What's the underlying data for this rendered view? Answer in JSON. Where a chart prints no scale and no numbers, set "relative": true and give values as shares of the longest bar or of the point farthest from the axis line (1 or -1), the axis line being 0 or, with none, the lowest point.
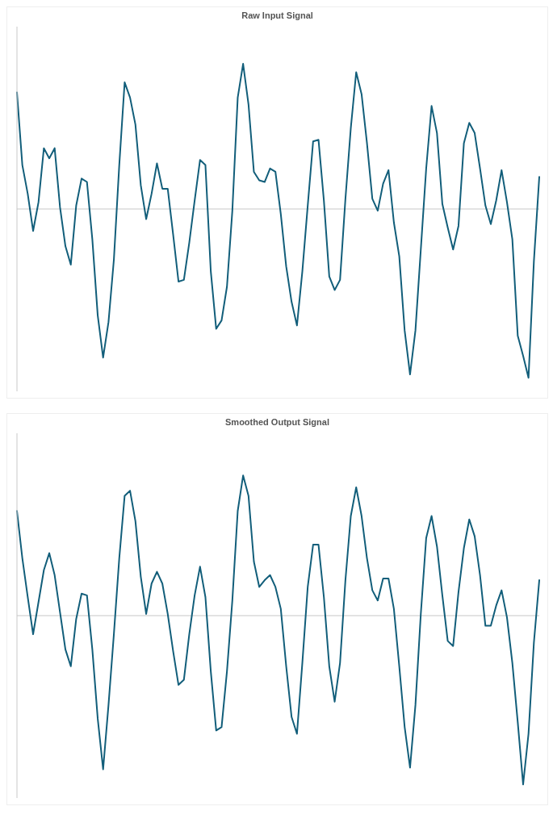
{
  "chart_data": [
    {
      "type": "line",
      "title": "Raw Input Signal",
      "relative": true,
      "categories": [
        null,
        null,
        null,
        null,
        null,
        null,
        null,
        null,
        null,
        null,
        null,
        null,
        null,
        null,
        null,
        null,
        null,
        null,
        null,
        null,
        null,
        null,
        null,
        null,
        null,
        null,
        null,
        null,
        null,
        null,
        null,
        null,
        null,
        null,
        null,
        null,
        null,
        null,
        null,
        null,
        null,
        null,
        null,
        null,
        null,
        null,
        null,
        null,
        null,
        null,
        null,
        null,
        null,
        null,
        null,
        null,
        null,
        null,
        null,
        null,
        null,
        null,
        null,
        null,
        null,
        null,
        null,
        null,
        null,
        null,
        null,
        null,
        null,
        null,
        null,
        null,
        null,
        null,
        null,
        null,
        null,
        null,
        null,
        null,
        null,
        null,
        null,
        null,
        null,
        null,
        null,
        null,
        null,
        null,
        null,
        null,
        null,
        null
      ],
      "series": [
        {
          "color": "#125e7a",
          "values": [
            0.69,
            0.26,
            0.09,
            -0.13,
            0.04,
            0.36,
            0.3,
            0.36,
            0.01,
            -0.22,
            -0.33,
            0.02,
            0.18,
            0.16,
            -0.18,
            -0.63,
            -0.88,
            -0.67,
            -0.3,
            0.26,
            0.75,
            0.66,
            0.5,
            0.14,
            -0.06,
            0.09,
            0.27,
            0.12,
            0.12,
            -0.15,
            -0.43,
            -0.42,
            -0.2,
            0.05,
            0.29,
            0.26,
            -0.37,
            -0.71,
            -0.66,
            -0.46,
            -0.01,
            0.66,
            0.86,
            0.62,
            0.22,
            0.17,
            0.16,
            0.24,
            0.22,
            -0.03,
            -0.34,
            -0.55,
            -0.69,
            -0.37,
            0.02,
            0.4,
            0.41,
            0.05,
            -0.4,
            -0.48,
            -0.42,
            0.06,
            0.48,
            0.81,
            0.68,
            0.39,
            0.06,
            -0.01,
            0.15,
            0.23,
            -0.08,
            -0.28,
            -0.72,
            -0.98,
            -0.72,
            -0.24,
            0.24,
            0.61,
            0.45,
            0.03,
            -0.11,
            -0.24,
            -0.1,
            0.39,
            0.51,
            0.45,
            0.24,
            0.02,
            -0.09,
            0.05,
            0.23,
            0.04,
            -0.18,
            -0.75,
            -0.87,
            -1.0,
            -0.31,
            0.19
          ]
        }
      ]
    },
    {
      "type": "line",
      "title": "Smoothed Output Signal",
      "relative": true,
      "categories": [
        null,
        null,
        null,
        null,
        null,
        null,
        null,
        null,
        null,
        null,
        null,
        null,
        null,
        null,
        null,
        null,
        null,
        null,
        null,
        null,
        null,
        null,
        null,
        null,
        null,
        null,
        null,
        null,
        null,
        null,
        null,
        null,
        null,
        null,
        null,
        null,
        null,
        null,
        null,
        null,
        null,
        null,
        null,
        null,
        null,
        null,
        null,
        null,
        null,
        null,
        null,
        null,
        null,
        null,
        null,
        null,
        null,
        null,
        null,
        null,
        null,
        null,
        null,
        null,
        null,
        null,
        null,
        null,
        null,
        null,
        null,
        null,
        null,
        null,
        null,
        null,
        null,
        null,
        null,
        null,
        null,
        null,
        null,
        null,
        null,
        null,
        null,
        null,
        null,
        null,
        null,
        null,
        null,
        null,
        null,
        null,
        null,
        null
      ],
      "series": [
        {
          "color": "#125e7a",
          "values": [
            0.62,
            0.34,
            0.11,
            -0.11,
            0.08,
            0.27,
            0.37,
            0.24,
            0.02,
            -0.2,
            -0.3,
            -0.02,
            0.13,
            0.12,
            -0.2,
            -0.61,
            -0.91,
            -0.53,
            -0.11,
            0.34,
            0.71,
            0.74,
            0.56,
            0.23,
            0.01,
            0.19,
            0.26,
            0.19,
            0.01,
            -0.21,
            -0.41,
            -0.38,
            -0.11,
            0.12,
            0.29,
            0.11,
            -0.33,
            -0.68,
            -0.66,
            -0.33,
            0.09,
            0.62,
            0.83,
            0.71,
            0.32,
            0.17,
            0.21,
            0.24,
            0.17,
            0.04,
            -0.3,
            -0.6,
            -0.7,
            -0.28,
            0.17,
            0.42,
            0.42,
            0.11,
            -0.3,
            -0.51,
            -0.28,
            0.21,
            0.59,
            0.76,
            0.59,
            0.34,
            0.15,
            0.09,
            0.22,
            0.22,
            0.04,
            -0.3,
            -0.66,
            -0.9,
            -0.53,
            0.01,
            0.46,
            0.59,
            0.41,
            0.12,
            -0.15,
            -0.18,
            0.14,
            0.4,
            0.57,
            0.47,
            0.24,
            -0.06,
            -0.06,
            0.06,
            0.15,
            -0.01,
            -0.28,
            -0.63,
            -1.0,
            -0.7,
            -0.16,
            0.21
          ]
        }
      ]
    }
  ]
}
